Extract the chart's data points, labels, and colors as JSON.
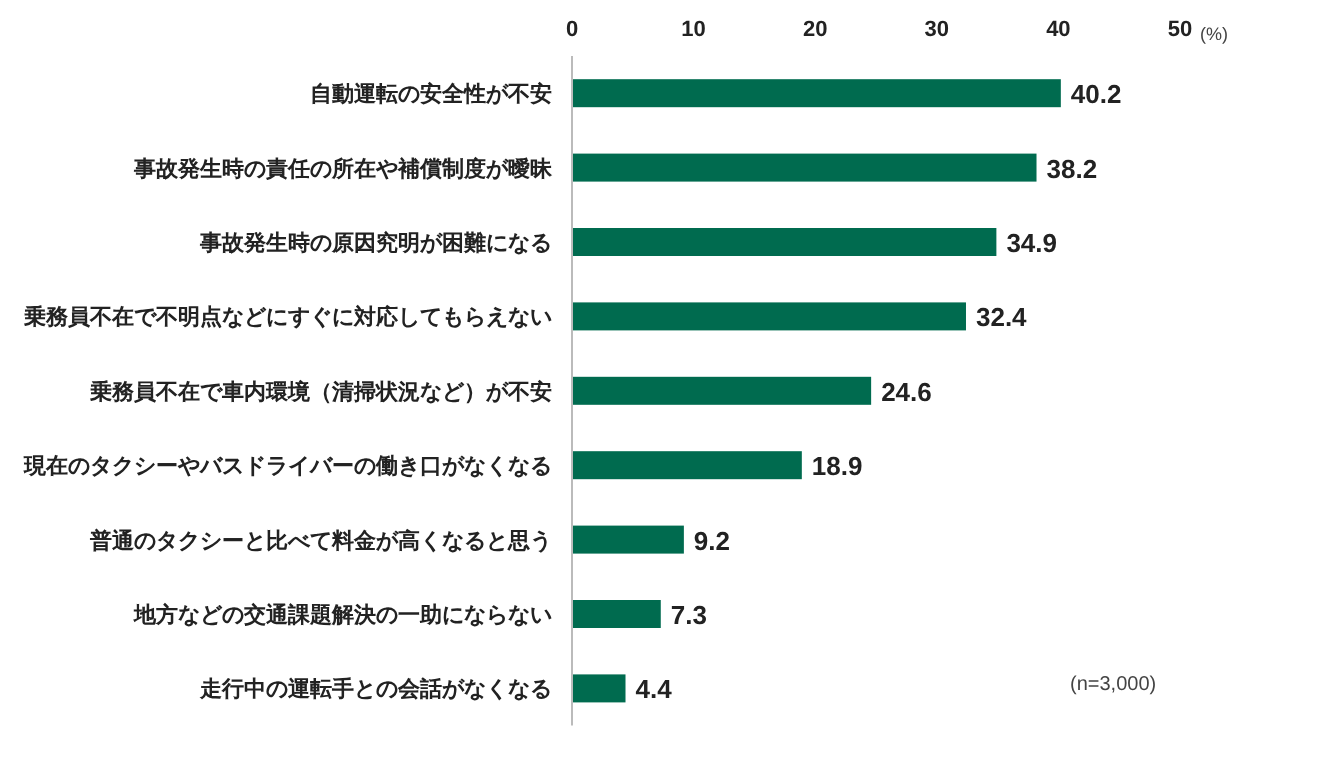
{
  "chart_data": {
    "type": "bar",
    "orientation": "horizontal",
    "categories": [
      "自動運転の安全性が不安",
      "事故発生時の責任の所在や補償制度が曖昧",
      "事故発生時の原因究明が困難になる",
      "乗務員不在で不明点などにすぐに対応してもらえない",
      "乗務員不在で車内環境（清掃状況など）が不安",
      "現在のタクシーやバスドライバーの働き口がなくなる",
      "普通のタクシーと比べて料金が高くなると思う",
      "地方などの交通課題解決の一助にならない",
      "走行中の運転手との会話がなくなる"
    ],
    "values": [
      40.2,
      38.2,
      34.9,
      32.4,
      24.6,
      18.9,
      9.2,
      7.3,
      4.4
    ],
    "color": "#006b4f",
    "xlim": [
      0,
      50
    ],
    "xticks": [
      0,
      10,
      20,
      30,
      40,
      50
    ],
    "xlabel": "(%)",
    "data_labels": true,
    "annotations": [
      "(n=3,000)"
    ]
  }
}
